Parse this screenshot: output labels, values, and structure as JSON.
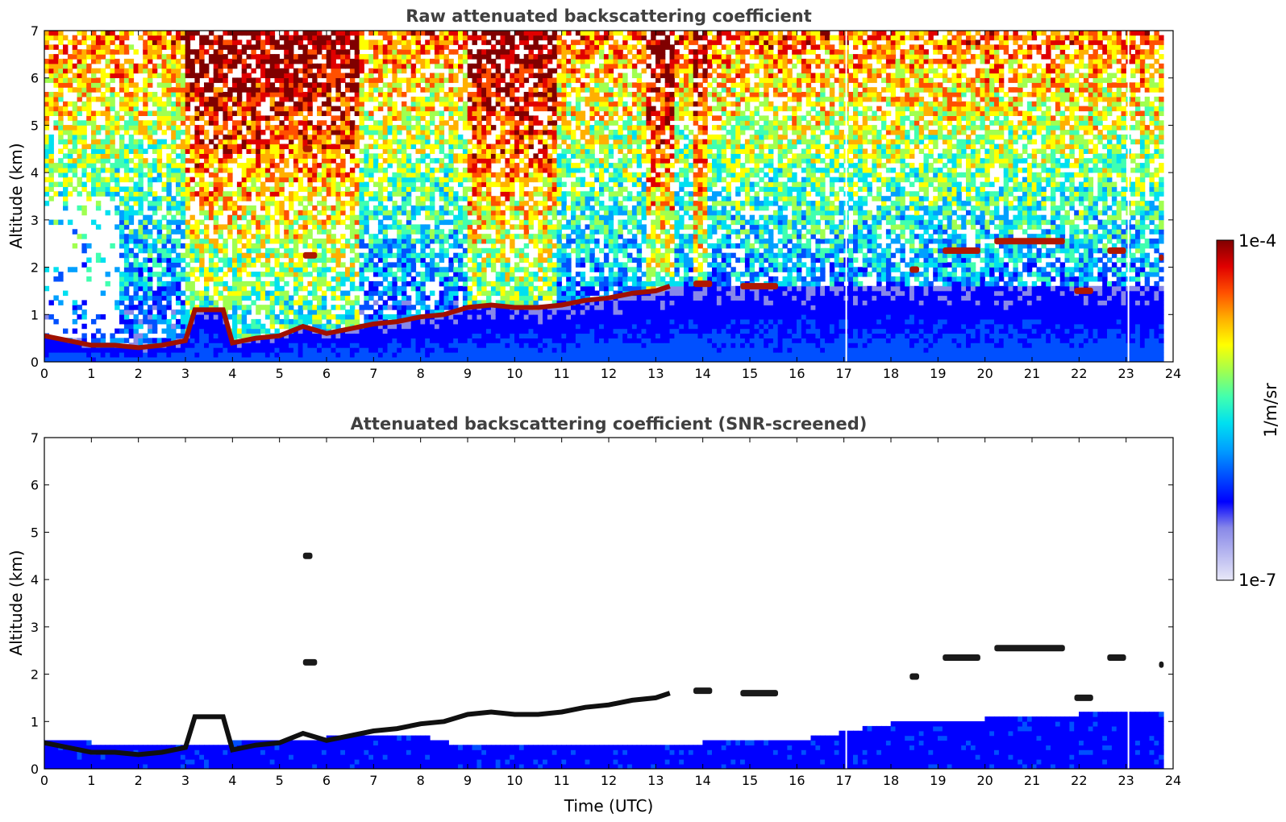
{
  "chart_data": [
    {
      "type": "heatmap",
      "title": "Raw attenuated backscattering coefficient",
      "xlabel": "",
      "ylabel": "Altitude (km)",
      "xlim": [
        0,
        24
      ],
      "ylim": [
        0,
        7
      ],
      "xticks": [
        0,
        1,
        2,
        3,
        4,
        5,
        6,
        7,
        8,
        9,
        10,
        11,
        12,
        13,
        14,
        15,
        16,
        17,
        18,
        19,
        20,
        21,
        22,
        23,
        24
      ],
      "yticks": [
        0,
        1,
        2,
        3,
        4,
        5,
        6,
        7
      ],
      "data_end_time": 23.8,
      "gaps": [
        17.05,
        23.05
      ],
      "boundary_layer_top": {
        "time": [
          0,
          0.5,
          1,
          1.5,
          2,
          2.5,
          3,
          3.2,
          3.8,
          4,
          4.5,
          5,
          5.5,
          6,
          6.5,
          7,
          7.5,
          8,
          8.5,
          9,
          9.5,
          10,
          10.5,
          11,
          11.5,
          12,
          12.5,
          13,
          13.3
        ],
        "altitude": [
          0.55,
          0.45,
          0.35,
          0.35,
          0.3,
          0.35,
          0.45,
          1.1,
          1.1,
          0.4,
          0.5,
          0.55,
          0.75,
          0.6,
          0.7,
          0.8,
          0.85,
          0.95,
          1.0,
          1.15,
          1.2,
          1.15,
          1.15,
          1.2,
          1.3,
          1.35,
          1.45,
          1.5,
          1.6
        ]
      },
      "elevated_layers": [
        {
          "t0": 13.8,
          "t1": 14.2,
          "alt": 1.65
        },
        {
          "t0": 14.8,
          "t1": 15.6,
          "alt": 1.6
        },
        {
          "t0": 5.5,
          "t1": 5.8,
          "alt": 2.25
        },
        {
          "t0": 5.5,
          "t1": 5.7,
          "alt": 4.5
        },
        {
          "t0": 18.4,
          "t1": 18.6,
          "alt": 1.95
        },
        {
          "t0": 19.1,
          "t1": 19.9,
          "alt": 2.35
        },
        {
          "t0": 20.2,
          "t1": 21.7,
          "alt": 2.55
        },
        {
          "t0": 21.9,
          "t1": 22.3,
          "alt": 1.5
        },
        {
          "t0": 22.6,
          "t1": 23.0,
          "alt": 2.35
        },
        {
          "t0": 23.7,
          "t1": 23.8,
          "alt": 2.2
        }
      ],
      "high_signal_columns": [
        [
          3,
          6.7
        ],
        [
          9,
          10.9
        ],
        [
          12.8,
          13.4
        ],
        [
          13.8,
          14.1
        ]
      ]
    },
    {
      "type": "heatmap",
      "title": "Attenuated backscattering coefficient (SNR-screened)",
      "xlabel": "Time (UTC)",
      "ylabel": "Altitude (km)",
      "xlim": [
        0,
        24
      ],
      "ylim": [
        0,
        7
      ],
      "xticks": [
        0,
        1,
        2,
        3,
        4,
        5,
        6,
        7,
        8,
        9,
        10,
        11,
        12,
        13,
        14,
        15,
        16,
        17,
        18,
        19,
        20,
        21,
        22,
        23,
        24
      ],
      "yticks": [
        0,
        1,
        2,
        3,
        4,
        5,
        6,
        7
      ],
      "data_end_time": 23.8,
      "gaps": [
        17.05,
        23.05
      ],
      "screened_top": {
        "time": [
          0,
          2,
          4,
          6,
          8,
          9,
          11,
          13,
          14,
          16,
          18,
          20,
          22,
          23.8
        ],
        "altitude": [
          0.6,
          0.5,
          0.55,
          0.65,
          0.7,
          0.45,
          0.5,
          0.5,
          0.55,
          0.6,
          0.95,
          1.05,
          1.15,
          1.2
        ]
      }
    }
  ],
  "colorbar": {
    "label": "1/m/sr",
    "max_label": "1e-4",
    "min_label": "1e-7",
    "scale": "log",
    "colormap": "jet",
    "colors": [
      "#e8e8f8",
      "#b8b8f0",
      "#8888e8",
      "#0000ff",
      "#0050ff",
      "#00a0ff",
      "#00e0f0",
      "#40ffb0",
      "#a0ff50",
      "#ffff00",
      "#ffb000",
      "#ff5000",
      "#e00000",
      "#800000"
    ]
  }
}
